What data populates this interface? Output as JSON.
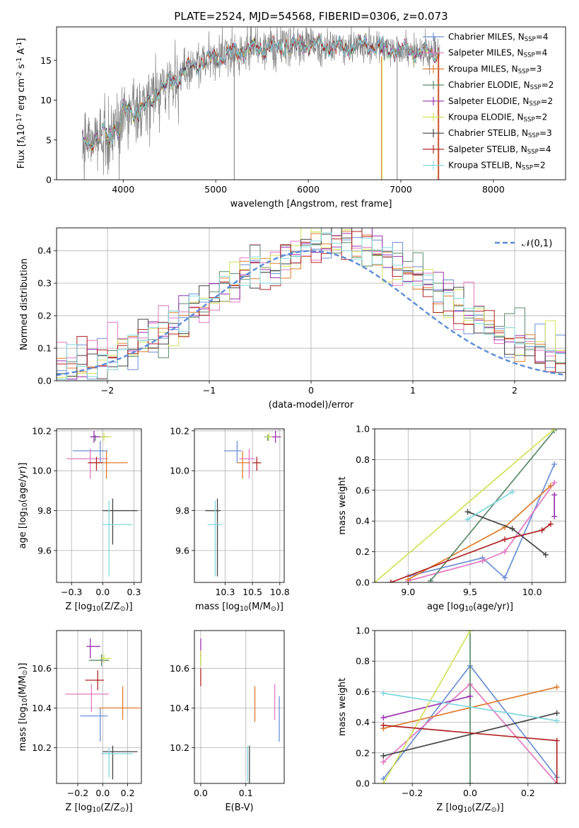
{
  "figure": {
    "title": "PLATE=2524, MJD=54568, FIBERID=0306, z=0.073"
  },
  "chart_data": [
    {
      "id": "spectrum",
      "type": "line",
      "xlabel": "wavelength [Angstrom, rest frame]",
      "ylabel": "Flux [f$_\\lambda$10$^{-17}$ erg cm$^{-2}$ s$^{-1}$ A$^{-1}$]",
      "xlim": [
        3280,
        8780
      ],
      "ylim": [
        0,
        19.2
      ],
      "xticks": [
        4000,
        5000,
        6000,
        7000,
        8000
      ],
      "yticks": [
        0,
        5,
        10,
        15
      ],
      "legend_position": "right",
      "data_curve": {
        "x": [
          3560,
          3600,
          3650,
          3700,
          3750,
          3800,
          3850,
          3900,
          3950,
          4000,
          4100,
          4200,
          4300,
          4400,
          4500,
          4600,
          4700,
          4800,
          4900,
          5000,
          5200,
          5400,
          5600,
          5800,
          6000,
          6200,
          6400,
          6600,
          6800,
          7000,
          7200,
          7400
        ],
        "y": [
          4.0,
          5.2,
          4.5,
          5.5,
          4.8,
          6.2,
          5.0,
          6.8,
          6.0,
          8.8,
          8.6,
          8.5,
          10.0,
          11.5,
          12.0,
          13.0,
          14.0,
          14.6,
          15.0,
          15.4,
          16.0,
          16.5,
          16.6,
          16.8,
          17.0,
          16.8,
          16.6,
          17.0,
          16.4,
          16.2,
          16.0,
          15.9
        ]
      },
      "series": [
        {
          "name": "Chabrier MILES, N$_{SSP}$=4",
          "color": "#6a8fd8"
        },
        {
          "name": "Salpeter MILES, N$_{SSP}$=4",
          "color": "#e377c2"
        },
        {
          "name": "Kroupa MILES, N$_{SSP}$=3",
          "color": "#e07b2a"
        },
        {
          "name": "Chabrier ELODIE, N$_{SSP}$=2",
          "color": "#5a8a6a"
        },
        {
          "name": "Salpeter ELODIE, N$_{SSP}$=2",
          "color": "#9b30b0"
        },
        {
          "name": "Kroupa ELODIE, N$_{SSP}$=2",
          "color": "#d4e157"
        },
        {
          "name": "Chabrier STELIB, N$_{SSP}$=3",
          "color": "#444444"
        },
        {
          "name": "Salpeter STELIB, N$_{SSP}$=4",
          "color": "#b22222"
        },
        {
          "name": "Kroupa STELIB, N$_{SSP}$=2",
          "color": "#80d8e0"
        }
      ]
    },
    {
      "id": "residuals",
      "type": "line",
      "xlabel": "(data-model)/error",
      "ylabel": "Normed distribution",
      "xlim": [
        -2.5,
        2.5
      ],
      "ylim": [
        0,
        0.47
      ],
      "xticks": [
        -2,
        -1,
        0,
        1,
        2
      ],
      "yticks": [
        0.0,
        0.1,
        0.2,
        0.3,
        0.4
      ],
      "grid": true,
      "reference_curve": "$\\mathcal{N}(0,1)$",
      "legend_position": "top-right",
      "bin_width": 0.1
    },
    {
      "id": "age_vs_Z",
      "type": "scatter",
      "xlabel": "Z [log$_{10}$(Z/Z$_\\odot$)]",
      "ylabel": "age  [log$_{10}$(age/yr)]",
      "xlim": [
        -0.37,
        0.31
      ],
      "ylim": [
        9.44,
        10.21
      ],
      "xticks": [
        -0.25,
        0.0,
        0.25
      ],
      "yticks": [
        9.6,
        9.8,
        10.0,
        10.2
      ],
      "grid": true,
      "points": [
        {
          "x": -0.02,
          "y": 10.1,
          "xerr": [
            0.22,
            0.06
          ],
          "yerr": [
            0.06,
            0.05
          ],
          "color": "#6a8fd8"
        },
        {
          "x": -0.1,
          "y": 10.06,
          "xerr": [
            0.19,
            0.14
          ],
          "yerr": [
            0.1,
            0.05
          ],
          "color": "#e377c2"
        },
        {
          "x": 0.03,
          "y": 10.04,
          "xerr": [
            0.14,
            0.17
          ],
          "yerr": [
            0.08,
            0.06
          ],
          "color": "#e07b2a"
        },
        {
          "x": -0.06,
          "y": 10.17,
          "xerr": [
            0.04,
            0.1
          ],
          "yerr": [
            0.02,
            0.01
          ],
          "color": "#5a8a6a"
        },
        {
          "x": -0.07,
          "y": 10.17,
          "xerr": [
            0.03,
            0.07
          ],
          "yerr": [
            0.03,
            0.03
          ],
          "color": "#9b30b0"
        },
        {
          "x": 0.01,
          "y": 10.17,
          "xerr": [
            0.03,
            0.06
          ],
          "yerr": [
            0.02,
            0.02
          ],
          "color": "#d4e157"
        },
        {
          "x": 0.08,
          "y": 9.8,
          "xerr": [
            0.08,
            0.2
          ],
          "yerr": [
            0.17,
            0.06
          ],
          "color": "#444444"
        },
        {
          "x": -0.05,
          "y": 10.04,
          "xerr": [
            0.07,
            0.05
          ],
          "yerr": [
            0.04,
            0.03
          ],
          "color": "#b22222"
        },
        {
          "x": 0.05,
          "y": 9.73,
          "xerr": [
            0.05,
            0.19
          ],
          "yerr": [
            0.26,
            0.12
          ],
          "color": "#80d8e0"
        }
      ]
    },
    {
      "id": "age_vs_mass",
      "type": "scatter",
      "xlabel": "mass [log$_{10}$(M/M$_\\odot$)]",
      "ylabel": "",
      "xlim": [
        9.97,
        10.79
      ],
      "ylim": [
        9.44,
        10.21
      ],
      "xticks": [
        10.25,
        10.5,
        10.75
      ],
      "yticks": [
        9.6,
        9.8,
        10.0,
        10.2
      ],
      "grid": true,
      "points": [
        {
          "x": 10.36,
          "y": 10.1,
          "xerr": [
            0.12,
            0.04
          ],
          "yerr": [
            0.06,
            0.05
          ],
          "color": "#6a8fd8"
        },
        {
          "x": 10.47,
          "y": 10.06,
          "xerr": [
            0.09,
            0.05
          ],
          "yerr": [
            0.1,
            0.05
          ],
          "color": "#e377c2"
        },
        {
          "x": 10.41,
          "y": 10.04,
          "xerr": [
            0.05,
            0.07
          ],
          "yerr": [
            0.08,
            0.06
          ],
          "color": "#e07b2a"
        },
        {
          "x": 10.64,
          "y": 10.17,
          "xerr": [
            0.03,
            0.03
          ],
          "yerr": [
            0.02,
            0.01
          ],
          "color": "#5a8a6a"
        },
        {
          "x": 10.71,
          "y": 10.17,
          "xerr": [
            0.05,
            0.05
          ],
          "yerr": [
            0.03,
            0.03
          ],
          "color": "#9b30b0"
        },
        {
          "x": 10.65,
          "y": 10.17,
          "xerr": [
            0.03,
            0.03
          ],
          "yerr": [
            0.02,
            0.02
          ],
          "color": "#d4e157"
        },
        {
          "x": 10.18,
          "y": 9.8,
          "xerr": [
            0.11,
            0.03
          ],
          "yerr": [
            0.33,
            0.06
          ],
          "color": "#444444"
        },
        {
          "x": 10.54,
          "y": 10.04,
          "xerr": [
            0.04,
            0.04
          ],
          "yerr": [
            0.04,
            0.03
          ],
          "color": "#b22222"
        },
        {
          "x": 10.16,
          "y": 9.73,
          "xerr": [
            0.07,
            0.06
          ],
          "yerr": [
            0.26,
            0.12
          ],
          "color": "#80d8e0"
        }
      ]
    },
    {
      "id": "massweight_vs_age",
      "type": "line",
      "xlabel": "age  [log$_{10}$(age/yr)]",
      "ylabel": "mass weight",
      "xlim": [
        8.73,
        10.27
      ],
      "ylim": [
        0,
        1.0
      ],
      "xticks": [
        9.0,
        9.5,
        10.0
      ],
      "yticks": [
        0.0,
        0.2,
        0.4,
        0.6,
        0.8,
        1.0
      ],
      "grid": true,
      "series": [
        {
          "color": "#6a8fd8",
          "x": [
            9.0,
            9.6,
            9.78,
            10.18
          ],
          "y": [
            0.04,
            0.16,
            0.03,
            0.77
          ]
        },
        {
          "color": "#e377c2",
          "x": [
            9.0,
            9.6,
            9.78,
            10.18
          ],
          "y": [
            0.01,
            0.14,
            0.2,
            0.65
          ]
        },
        {
          "color": "#e07b2a",
          "x": [
            9.0,
            9.78,
            10.15
          ],
          "y": [
            0.02,
            0.36,
            0.63
          ]
        },
        {
          "color": "#5a8a6a",
          "x": [
            9.18,
            10.18
          ],
          "y": [
            0.01,
            0.99
          ]
        },
        {
          "color": "#9b30b0",
          "x": [
            10.18,
            10.18
          ],
          "y": [
            0.43,
            0.57
          ]
        },
        {
          "color": "#d4e157",
          "x": [
            8.73,
            10.18
          ],
          "y": [
            0.0,
            1.0
          ]
        },
        {
          "color": "#444444",
          "x": [
            9.48,
            9.84,
            10.11
          ],
          "y": [
            0.46,
            0.35,
            0.18
          ]
        },
        {
          "color": "#b22222",
          "x": [
            8.86,
            9.78,
            10.08,
            10.15
          ],
          "y": [
            0.0,
            0.28,
            0.34,
            0.38
          ]
        },
        {
          "color": "#80d8e0",
          "x": [
            9.48,
            9.84
          ],
          "y": [
            0.41,
            0.59
          ]
        }
      ]
    },
    {
      "id": "mass_vs_Z",
      "type": "scatter",
      "xlabel": "Z [log$_{10}$(Z/Z$_\\odot$)]",
      "ylabel": "mass [log$_{10}$(M/M$_\\odot$)]",
      "xlim": [
        -0.37,
        0.31
      ],
      "ylim": [
        10.02,
        10.79
      ],
      "xticks": [
        -0.2,
        0.0,
        0.2
      ],
      "yticks": [
        10.2,
        10.4,
        10.6
      ],
      "grid": true,
      "points": [
        {
          "x": -0.02,
          "y": 10.36,
          "xerr": [
            0.16,
            0.06
          ],
          "yerr": [
            0.13,
            0.04
          ],
          "color": "#6a8fd8"
        },
        {
          "x": -0.09,
          "y": 10.47,
          "xerr": [
            0.21,
            0.14
          ],
          "yerr": [
            0.09,
            0.05
          ],
          "color": "#e377c2"
        },
        {
          "x": 0.16,
          "y": 10.4,
          "xerr": [
            0.19,
            0.14
          ],
          "yerr": [
            0.06,
            0.11
          ],
          "color": "#e07b2a"
        },
        {
          "x": -0.01,
          "y": 10.64,
          "xerr": [
            0.1,
            0.06
          ],
          "yerr": [
            0.03,
            0.03
          ],
          "color": "#5a8a6a"
        },
        {
          "x": -0.1,
          "y": 10.71,
          "xerr": [
            0.03,
            0.08
          ],
          "yerr": [
            0.06,
            0.04
          ],
          "color": "#9b30b0"
        },
        {
          "x": 0.01,
          "y": 10.65,
          "xerr": [
            0.03,
            0.06
          ],
          "yerr": [
            0.02,
            0.02
          ],
          "color": "#d4e157"
        },
        {
          "x": 0.08,
          "y": 10.18,
          "xerr": [
            0.08,
            0.2
          ],
          "yerr": [
            0.14,
            0.03
          ],
          "color": "#444444"
        },
        {
          "x": -0.04,
          "y": 10.54,
          "xerr": [
            0.1,
            0.05
          ],
          "yerr": [
            0.05,
            0.05
          ],
          "color": "#b22222"
        },
        {
          "x": 0.05,
          "y": 10.17,
          "xerr": [
            0.06,
            0.19
          ],
          "yerr": [
            0.12,
            0.03
          ],
          "color": "#80d8e0"
        }
      ]
    },
    {
      "id": "mass_vs_ebv",
      "type": "scatter",
      "xlabel": "E(B-V)",
      "ylabel": "",
      "xlim": [
        -0.007,
        0.0925
      ],
      "ylim": [
        10.02,
        10.79
      ],
      "xticks": [
        0.0,
        0.05
      ],
      "yticks": [
        10.2,
        10.4,
        10.6
      ],
      "grid": true,
      "points": [
        {
          "x": 0.087,
          "y": 10.36,
          "yerr": [
            0.13,
            0.1
          ],
          "color": "#6a8fd8"
        },
        {
          "x": 0.082,
          "y": 10.43,
          "yerr": [
            0.09,
            0.09
          ],
          "color": "#e377c2"
        },
        {
          "x": 0.06,
          "y": 10.42,
          "yerr": [
            0.09,
            0.09
          ],
          "color": "#e07b2a"
        },
        {
          "x": 0.0,
          "y": 10.64,
          "yerr": [
            0.03,
            0.03
          ],
          "color": "#5a8a6a"
        },
        {
          "x": 0.0,
          "y": 10.71,
          "yerr": [
            0.05,
            0.04
          ],
          "color": "#9b30b0"
        },
        {
          "x": 0.0,
          "y": 10.65,
          "yerr": [
            0.04,
            0.04
          ],
          "color": "#d4e157"
        },
        {
          "x": 0.054,
          "y": 10.13,
          "yerr": [
            0.11,
            0.08
          ],
          "color": "#444444"
        },
        {
          "x": 0.0,
          "y": 10.56,
          "yerr": [
            0.05,
            0.04
          ],
          "color": "#b22222"
        },
        {
          "x": 0.052,
          "y": 10.12,
          "yerr": [
            0.09,
            0.09
          ],
          "color": "#80d8e0"
        }
      ]
    },
    {
      "id": "massweight_vs_Z",
      "type": "line",
      "xlabel": "Z [log$_{10}$(Z/Z$_\\odot$)]",
      "ylabel": "mass weight",
      "xlim": [
        -0.33,
        0.33
      ],
      "ylim": [
        0,
        1.0
      ],
      "xticks": [
        -0.2,
        0.0,
        0.2
      ],
      "yticks": [
        0.0,
        0.2,
        0.4,
        0.6,
        0.8,
        1.0
      ],
      "grid": true,
      "series": [
        {
          "color": "#6a8fd8",
          "x": [
            -0.3,
            0.0,
            0.3,
            0.3
          ],
          "y": [
            0.03,
            0.77,
            0.04,
            0.0
          ]
        },
        {
          "color": "#e377c2",
          "x": [
            -0.3,
            0.0,
            0.3
          ],
          "y": [
            0.14,
            0.65,
            0.0
          ]
        },
        {
          "color": "#e07b2a",
          "x": [
            -0.3,
            0.3
          ],
          "y": [
            0.36,
            0.63
          ]
        },
        {
          "color": "#5a8a6a",
          "x": [
            0.0,
            0.0
          ],
          "y": [
            0.0,
            1.0
          ]
        },
        {
          "color": "#9b30b0",
          "x": [
            -0.3,
            0.0
          ],
          "y": [
            0.43,
            0.57
          ]
        },
        {
          "color": "#d4e157",
          "x": [
            -0.3,
            0.0
          ],
          "y": [
            0.0,
            1.0
          ]
        },
        {
          "color": "#444444",
          "x": [
            -0.3,
            0.3
          ],
          "y": [
            0.18,
            0.46
          ]
        },
        {
          "color": "#b22222",
          "x": [
            -0.3,
            0.3,
            0.3
          ],
          "y": [
            0.38,
            0.28,
            0.0
          ]
        },
        {
          "color": "#80d8e0",
          "x": [
            -0.3,
            0.3
          ],
          "y": [
            0.59,
            0.41
          ]
        }
      ]
    }
  ]
}
